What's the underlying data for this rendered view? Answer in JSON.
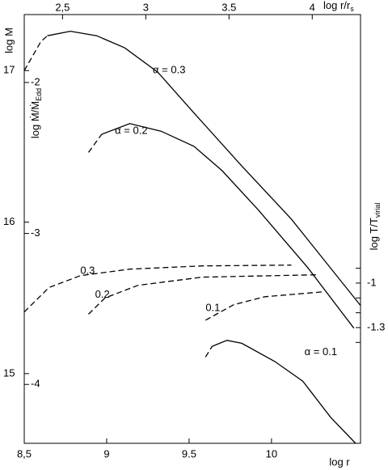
{
  "chart_data": {
    "type": "line",
    "x_label": "log r",
    "x2_label": {
      "main": "log r/r",
      "sub": "s"
    },
    "y_label": "log M",
    "y2_label": {
      "main": "log Ṁ/Ṁ",
      "sub": "Edd"
    },
    "y3_label": {
      "main": "log T/T",
      "sub": "virial"
    },
    "xlim": [
      8.5,
      10.54
    ],
    "xticks": [
      {
        "value": 8.5,
        "label": "8,5"
      },
      9,
      9.5,
      10
    ],
    "x2lim": [
      2.27,
      4.29
    ],
    "x2ticks": [
      {
        "value": 2.5,
        "label": "2,5"
      },
      3,
      3.5,
      4
    ],
    "ylim": [
      14.54,
      17.37
    ],
    "yticks": [
      15,
      16,
      17
    ],
    "y2lim": [
      -4.39,
      -1.55
    ],
    "y2ticks": [
      -2,
      -3,
      -4
    ],
    "y3lim": [
      -2.08,
      0.81
    ],
    "y3ticks": [
      -1,
      -1.3
    ],
    "y3minor": [
      -0.9,
      -1.1,
      -1.2,
      -1.4
    ],
    "series": [
      {
        "axis": "y",
        "style": "dashed",
        "color": "#000",
        "x": [
          8.5,
          8.6,
          8.64
        ],
        "values": [
          17.0,
          17.19,
          17.23
        ]
      },
      {
        "axis": "y",
        "style": "solid",
        "color": "#000",
        "label": "α = 0.3",
        "label_at": [
          9.28,
          17.0
        ],
        "x": [
          8.64,
          8.78,
          8.94,
          9.11,
          9.31,
          9.53,
          9.82,
          10.12,
          10.54
        ],
        "values": [
          17.23,
          17.26,
          17.23,
          17.15,
          16.99,
          16.72,
          16.37,
          16.02,
          15.45
        ]
      },
      {
        "axis": "y",
        "style": "dashed",
        "color": "#000",
        "x": [
          8.89,
          8.97
        ],
        "values": [
          16.46,
          16.58
        ]
      },
      {
        "axis": "y",
        "style": "solid",
        "color": "#000",
        "label": "α = 0.2",
        "label_at": [
          9.05,
          16.6
        ],
        "x": [
          8.97,
          9.14,
          9.33,
          9.53,
          9.7,
          9.92,
          10.22,
          10.5
        ],
        "values": [
          16.58,
          16.65,
          16.6,
          16.5,
          16.34,
          16.08,
          15.7,
          15.3
        ]
      },
      {
        "axis": "y",
        "style": "dashed",
        "color": "#000",
        "x": [
          9.6,
          9.64
        ],
        "values": [
          15.11,
          15.18
        ]
      },
      {
        "axis": "y",
        "style": "solid",
        "color": "#000",
        "label": "α = 0.1",
        "label_at": [
          10.2,
          15.14
        ],
        "x": [
          9.64,
          9.73,
          9.82,
          10.02,
          10.19,
          10.36,
          10.51
        ],
        "values": [
          15.18,
          15.22,
          15.2,
          15.08,
          14.95,
          14.71,
          14.54
        ]
      },
      {
        "axis": "y3",
        "style": "dashed",
        "color": "#000",
        "label": "0.3",
        "label_at": [
          8.84,
          -0.92
        ],
        "x": [
          8.5,
          8.65,
          8.84,
          9.14,
          9.58,
          10.12
        ],
        "values": [
          -1.195,
          -1.03,
          -0.95,
          -0.906,
          -0.884,
          -0.879
        ]
      },
      {
        "axis": "y3",
        "style": "dashed",
        "color": "#000",
        "label": "0.2",
        "label_at": [
          8.93,
          -1.08
        ],
        "x": [
          8.89,
          8.99,
          9.19,
          9.58,
          10.27
        ],
        "values": [
          -1.21,
          -1.1,
          -1.015,
          -0.96,
          -0.944
        ]
      },
      {
        "axis": "y3",
        "style": "dashed",
        "color": "#000",
        "label": "0.1",
        "label_at": [
          9.6,
          -1.17
        ],
        "x": [
          9.6,
          9.77,
          9.96,
          10.31
        ],
        "values": [
          -1.25,
          -1.146,
          -1.092,
          -1.059
        ]
      }
    ]
  }
}
